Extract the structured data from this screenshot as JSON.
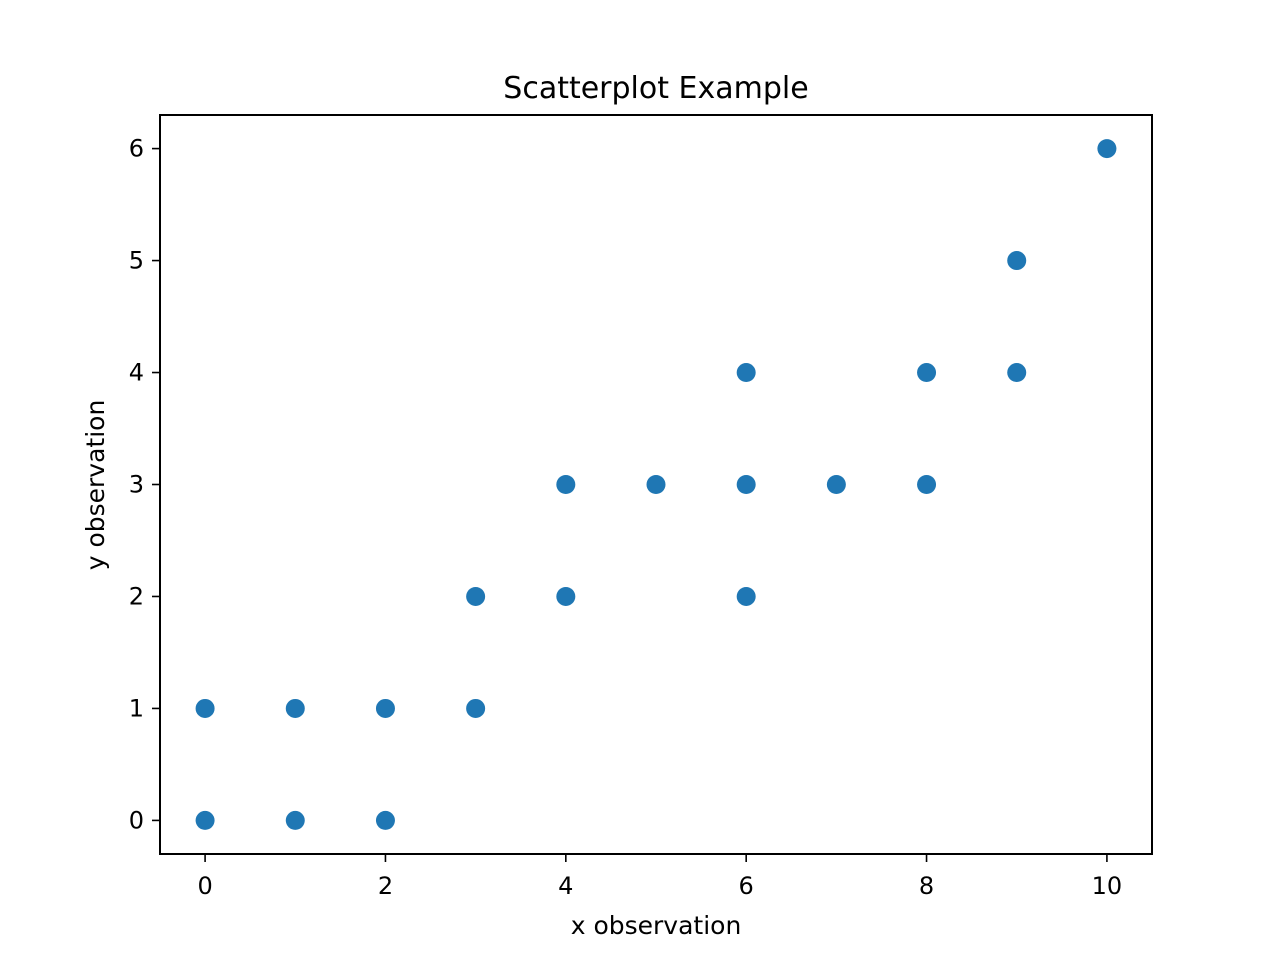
{
  "chart_data": {
    "type": "scatter",
    "title": "Scatterplot Example",
    "xlabel": "x observation",
    "ylabel": "y observation",
    "xlim": [
      -0.5,
      10.5
    ],
    "ylim": [
      -0.3,
      6.3
    ],
    "xticks": [
      0,
      2,
      4,
      6,
      8,
      10
    ],
    "yticks": [
      0,
      1,
      2,
      3,
      4,
      5,
      6
    ],
    "grid": false,
    "legend": "none",
    "color": "#1f77b4",
    "points": [
      {
        "x": 0,
        "y": 0
      },
      {
        "x": 0,
        "y": 1
      },
      {
        "x": 1,
        "y": 0
      },
      {
        "x": 1,
        "y": 1
      },
      {
        "x": 2,
        "y": 0
      },
      {
        "x": 2,
        "y": 1
      },
      {
        "x": 3,
        "y": 1
      },
      {
        "x": 3,
        "y": 2
      },
      {
        "x": 4,
        "y": 2
      },
      {
        "x": 4,
        "y": 3
      },
      {
        "x": 5,
        "y": 3
      },
      {
        "x": 6,
        "y": 2
      },
      {
        "x": 6,
        "y": 3
      },
      {
        "x": 6,
        "y": 4
      },
      {
        "x": 7,
        "y": 3
      },
      {
        "x": 8,
        "y": 3
      },
      {
        "x": 8,
        "y": 4
      },
      {
        "x": 9,
        "y": 4
      },
      {
        "x": 9,
        "y": 5
      },
      {
        "x": 10,
        "y": 6
      }
    ]
  }
}
